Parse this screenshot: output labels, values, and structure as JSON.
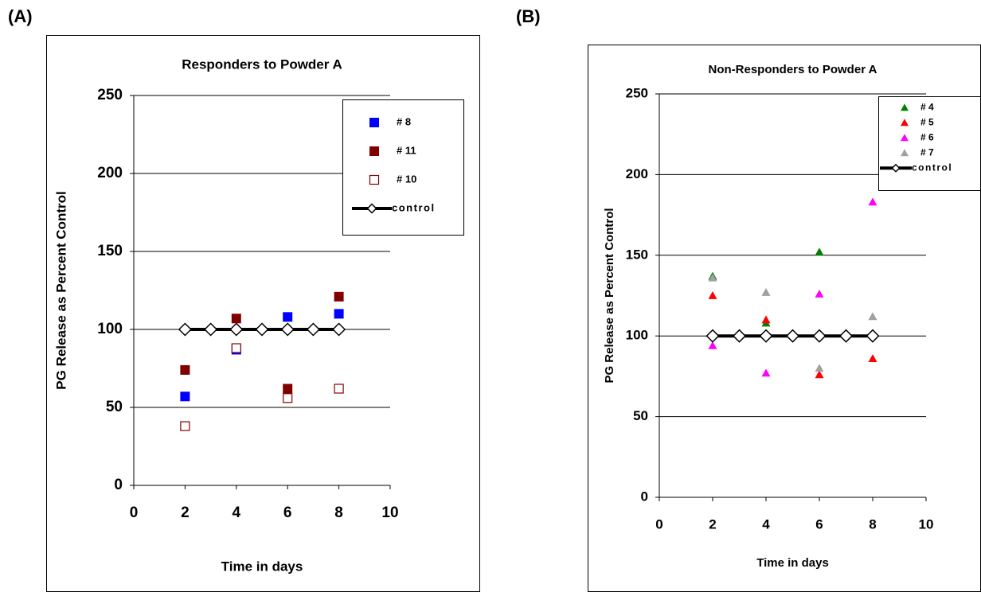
{
  "chart_data": [
    {
      "type": "scatter",
      "panel_label": "(A)",
      "title": "Responders to Powder A",
      "xlabel": "Time in days",
      "ylabel": "PG Release as Percent Control",
      "xlim": [
        0,
        10
      ],
      "ylim": [
        0,
        250
      ],
      "xticks": [
        0,
        2,
        4,
        6,
        8,
        10
      ],
      "yticks": [
        0,
        50,
        100,
        150,
        200,
        250
      ],
      "grid": true,
      "legend": "upper right",
      "series": [
        {
          "name": "# 8",
          "color": "#0000ff",
          "marker": "square",
          "x": [
            2,
            4,
            6,
            8
          ],
          "values": [
            57,
            87,
            108,
            110
          ]
        },
        {
          "name": "# 11",
          "color": "#800000",
          "marker": "square",
          "x": [
            2,
            4,
            6,
            8
          ],
          "values": [
            74,
            107,
            62,
            121
          ]
        },
        {
          "name": "# 10",
          "color": "#800000",
          "marker": "open-square",
          "x": [
            2,
            4,
            6,
            8
          ],
          "values": [
            38,
            88,
            56,
            62
          ]
        },
        {
          "name": "control",
          "color": "#000000",
          "marker": "open-diamond",
          "line": true,
          "x": [
            2,
            3,
            4,
            5,
            6,
            7,
            8
          ],
          "values": [
            100,
            100,
            100,
            100,
            100,
            100,
            100
          ]
        }
      ]
    },
    {
      "type": "scatter",
      "panel_label": "(B)",
      "title": "Non-Responders to Powder A",
      "xlabel": "Time in days",
      "ylabel": "PG Release as Percent Control",
      "xlim": [
        0,
        10
      ],
      "ylim": [
        0,
        250
      ],
      "xticks": [
        0,
        2,
        4,
        6,
        8,
        10
      ],
      "yticks": [
        0,
        50,
        100,
        150,
        200,
        250
      ],
      "grid": true,
      "legend": "upper right",
      "series": [
        {
          "name": "# 4",
          "color": "#008000",
          "marker": "triangle",
          "x": [
            2,
            4,
            6,
            8
          ],
          "values": [
            137,
            108,
            152,
            null
          ]
        },
        {
          "name": "# 5",
          "color": "#ff0000",
          "marker": "triangle",
          "x": [
            2,
            4,
            6,
            8
          ],
          "values": [
            125,
            110,
            76,
            86
          ]
        },
        {
          "name": "# 6",
          "color": "#ff00ff",
          "marker": "triangle",
          "x": [
            2,
            4,
            6,
            8
          ],
          "values": [
            94,
            77,
            126,
            183
          ]
        },
        {
          "name": "# 7",
          "color": "#a0a0a0",
          "marker": "triangle",
          "x": [
            2,
            4,
            6,
            8
          ],
          "values": [
            136,
            127,
            80,
            112
          ]
        },
        {
          "name": "control",
          "color": "#000000",
          "marker": "open-diamond",
          "line": true,
          "x": [
            2,
            3,
            4,
            5,
            6,
            7,
            8
          ],
          "values": [
            100,
            100,
            100,
            100,
            100,
            100,
            100
          ]
        }
      ]
    }
  ]
}
